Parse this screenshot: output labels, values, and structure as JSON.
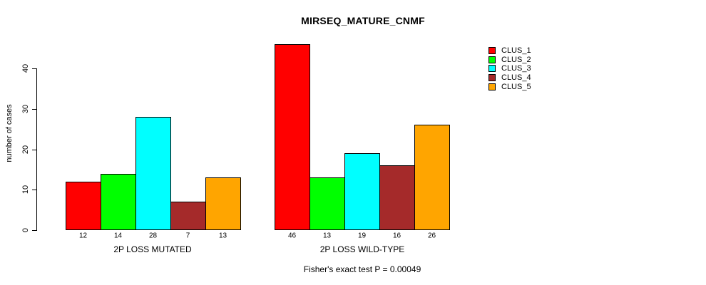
{
  "chart_data": {
    "type": "bar",
    "title": "MIRSEQ_MATURE_CNMF",
    "ylabel": "number of cases",
    "xlabel": "",
    "ylim": [
      0,
      46
    ],
    "y_ticks": [
      0,
      10,
      20,
      30,
      40
    ],
    "grid": false,
    "legend_position": "right-outside",
    "bar_value_labels_shown": true,
    "series": [
      {
        "name": "CLUS_1",
        "color": "#FF0000"
      },
      {
        "name": "CLUS_2",
        "color": "#00FF00"
      },
      {
        "name": "CLUS_3",
        "color": "#00FFFF"
      },
      {
        "name": "CLUS_4",
        "color": "#A52A2A"
      },
      {
        "name": "CLUS_5",
        "color": "#FFA500"
      }
    ],
    "groups": [
      {
        "label": "2P LOSS MUTATED",
        "values": [
          12,
          14,
          28,
          7,
          13
        ]
      },
      {
        "label": "2P LOSS WILD-TYPE",
        "values": [
          46,
          13,
          19,
          16,
          26
        ]
      }
    ],
    "annotation": "Fisher's exact test P = 0.00049"
  }
}
